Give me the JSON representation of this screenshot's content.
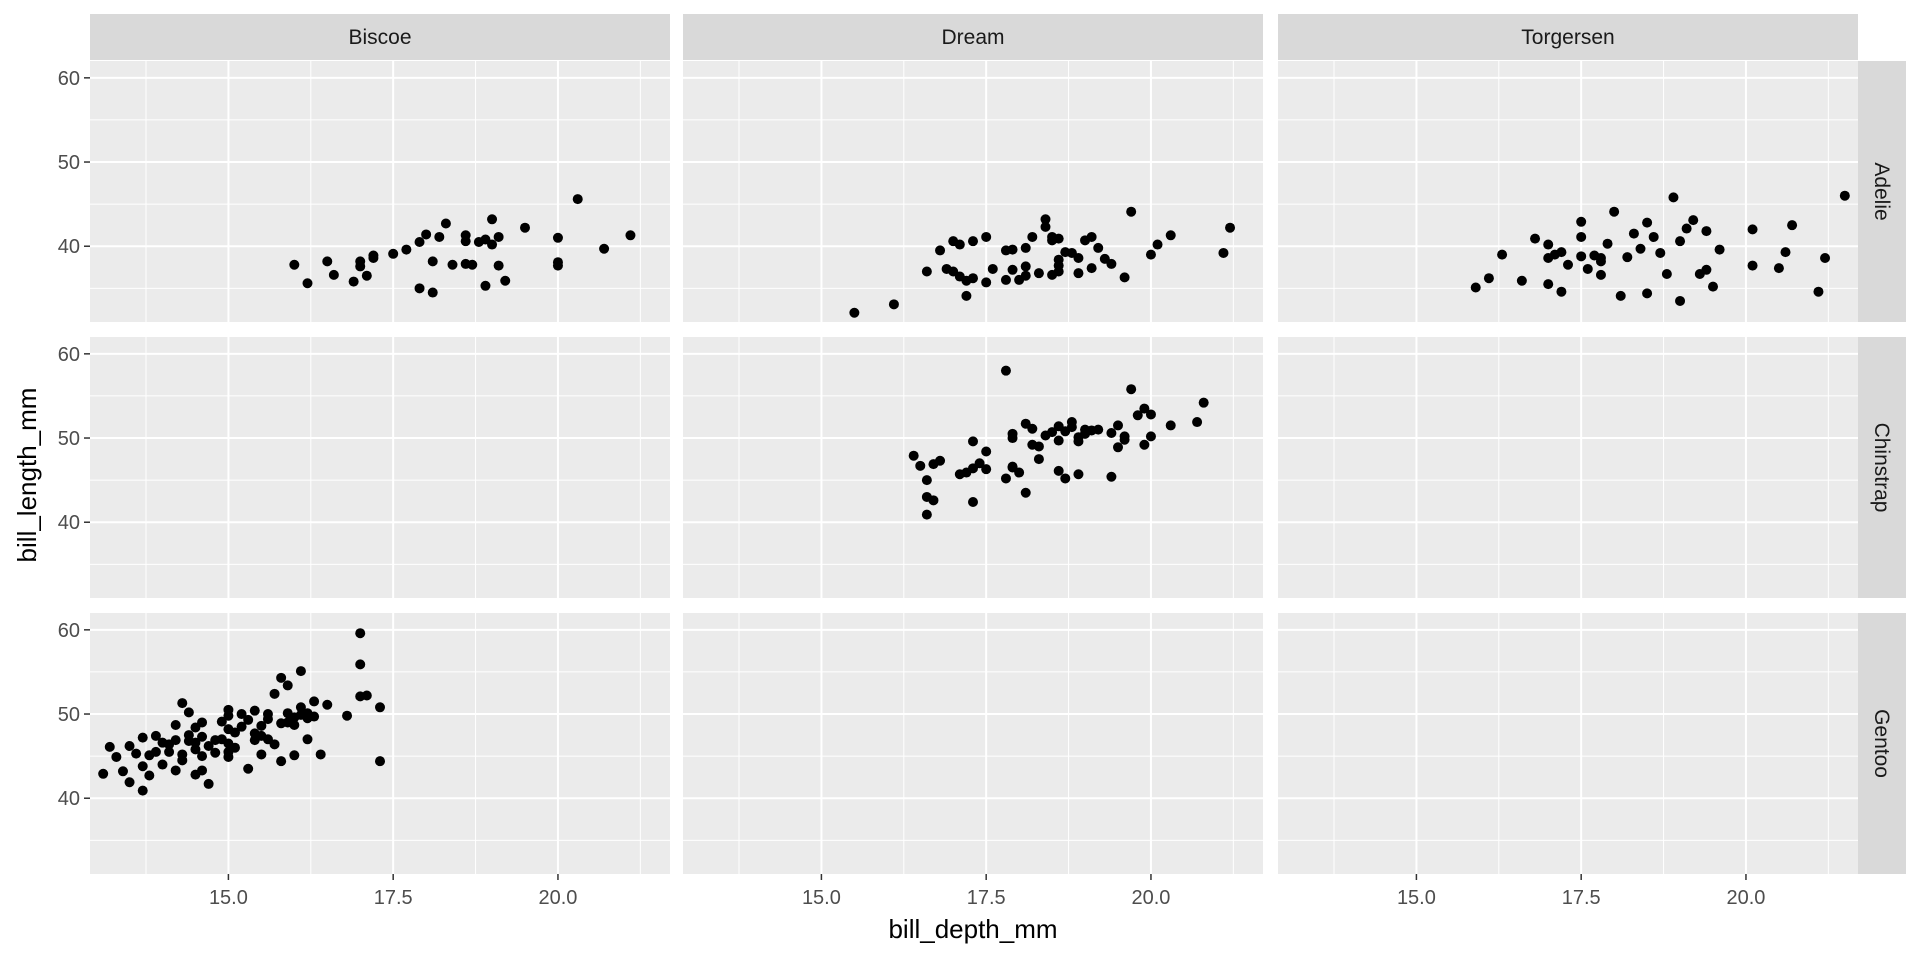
{
  "chart_data": {
    "type": "scatter",
    "xlabel": "bill_depth_mm",
    "ylabel": "bill_length_mm",
    "col_facets": [
      "Biscoe",
      "Dream",
      "Torgersen"
    ],
    "row_facets": [
      "Adelie",
      "Chinstrap",
      "Gentoo"
    ],
    "xlim": [
      12.9,
      21.7
    ],
    "ylim": [
      31,
      62
    ],
    "x_ticks": [
      15.0,
      17.5,
      20.0
    ],
    "x_tick_labels": [
      "15.0",
      "17.5",
      "20.0"
    ],
    "y_ticks": [
      40,
      50,
      60
    ],
    "y_tick_labels": [
      "40",
      "50",
      "60"
    ],
    "grid": true,
    "point_color": "#000000",
    "panel_background": "#ebebeb",
    "strip_background": "#d9d9d9",
    "panels": [
      {
        "row": "Adelie",
        "col": "Biscoe",
        "points": [
          [
            16.0,
            37.8
          ],
          [
            16.2,
            35.6
          ],
          [
            16.5,
            38.2
          ],
          [
            16.6,
            36.6
          ],
          [
            16.9,
            35.8
          ],
          [
            17.0,
            37.6
          ],
          [
            17.0,
            38.2
          ],
          [
            17.1,
            36.5
          ],
          [
            17.2,
            38.6
          ],
          [
            17.2,
            38.9
          ],
          [
            17.5,
            39.1
          ],
          [
            17.7,
            39.6
          ],
          [
            17.9,
            40.5
          ],
          [
            18.0,
            41.4
          ],
          [
            17.9,
            35.0
          ],
          [
            18.1,
            34.5
          ],
          [
            18.1,
            38.2
          ],
          [
            18.2,
            41.1
          ],
          [
            18.3,
            42.7
          ],
          [
            18.4,
            37.8
          ],
          [
            18.6,
            40.6
          ],
          [
            18.6,
            41.3
          ],
          [
            18.6,
            37.9
          ],
          [
            18.7,
            37.8
          ],
          [
            18.8,
            40.5
          ],
          [
            18.9,
            40.8
          ],
          [
            18.9,
            35.3
          ],
          [
            19.0,
            40.2
          ],
          [
            19.0,
            43.2
          ],
          [
            19.1,
            41.1
          ],
          [
            19.1,
            37.7
          ],
          [
            19.2,
            35.9
          ],
          [
            19.5,
            42.2
          ],
          [
            20.0,
            41.0
          ],
          [
            20.0,
            38.1
          ],
          [
            20.0,
            37.7
          ],
          [
            20.3,
            45.6
          ],
          [
            20.7,
            39.7
          ],
          [
            21.1,
            41.3
          ]
        ]
      },
      {
        "row": "Adelie",
        "col": "Dream",
        "points": [
          [
            15.5,
            32.1
          ],
          [
            16.1,
            33.1
          ],
          [
            16.6,
            37.0
          ],
          [
            16.8,
            39.5
          ],
          [
            16.9,
            37.3
          ],
          [
            17.0,
            37.0
          ],
          [
            17.0,
            40.6
          ],
          [
            17.1,
            36.4
          ],
          [
            17.1,
            40.2
          ],
          [
            17.2,
            35.9
          ],
          [
            17.2,
            34.1
          ],
          [
            17.3,
            40.6
          ],
          [
            17.3,
            36.2
          ],
          [
            17.5,
            41.1
          ],
          [
            17.5,
            35.7
          ],
          [
            17.6,
            37.3
          ],
          [
            17.8,
            39.5
          ],
          [
            17.8,
            36.0
          ],
          [
            17.9,
            37.2
          ],
          [
            17.9,
            39.6
          ],
          [
            18.0,
            36.0
          ],
          [
            18.1,
            36.5
          ],
          [
            18.1,
            37.6
          ],
          [
            18.1,
            39.8
          ],
          [
            18.2,
            41.1
          ],
          [
            18.3,
            36.8
          ],
          [
            18.4,
            42.3
          ],
          [
            18.5,
            40.7
          ],
          [
            18.5,
            41.1
          ],
          [
            18.5,
            36.6
          ],
          [
            18.6,
            37.0
          ],
          [
            18.6,
            38.4
          ],
          [
            18.6,
            40.9
          ],
          [
            18.7,
            39.3
          ],
          [
            18.8,
            39.2
          ],
          [
            18.9,
            36.8
          ],
          [
            18.9,
            38.6
          ],
          [
            19.0,
            40.7
          ],
          [
            19.1,
            41.1
          ],
          [
            19.1,
            37.4
          ],
          [
            19.2,
            39.8
          ],
          [
            19.3,
            38.5
          ],
          [
            19.4,
            37.9
          ],
          [
            19.6,
            36.3
          ],
          [
            19.7,
            44.1
          ],
          [
            20.0,
            39.0
          ],
          [
            20.1,
            40.2
          ],
          [
            20.3,
            41.3
          ],
          [
            21.1,
            39.2
          ],
          [
            21.2,
            42.2
          ],
          [
            18.4,
            43.2
          ],
          [
            18.6,
            37.7
          ]
        ]
      },
      {
        "row": "Adelie",
        "col": "Torgersen",
        "points": [
          [
            15.9,
            35.1
          ],
          [
            16.1,
            36.2
          ],
          [
            16.6,
            35.9
          ],
          [
            16.8,
            40.9
          ],
          [
            17.0,
            38.6
          ],
          [
            17.0,
            40.2
          ],
          [
            17.0,
            35.5
          ],
          [
            17.1,
            39.0
          ],
          [
            17.2,
            39.3
          ],
          [
            17.2,
            34.6
          ],
          [
            17.3,
            37.8
          ],
          [
            17.5,
            38.8
          ],
          [
            17.5,
            41.1
          ],
          [
            17.5,
            42.9
          ],
          [
            17.6,
            37.3
          ],
          [
            17.7,
            38.9
          ],
          [
            17.8,
            36.6
          ],
          [
            17.8,
            38.6
          ],
          [
            17.9,
            40.3
          ],
          [
            18.0,
            44.1
          ],
          [
            18.1,
            34.1
          ],
          [
            18.2,
            38.7
          ],
          [
            18.3,
            41.5
          ],
          [
            18.4,
            39.7
          ],
          [
            18.5,
            42.8
          ],
          [
            18.5,
            34.4
          ],
          [
            18.6,
            41.1
          ],
          [
            18.7,
            39.2
          ],
          [
            18.8,
            36.7
          ],
          [
            18.9,
            45.8
          ],
          [
            19.0,
            40.6
          ],
          [
            19.0,
            33.5
          ],
          [
            19.1,
            42.1
          ],
          [
            19.2,
            43.1
          ],
          [
            19.3,
            36.7
          ],
          [
            19.4,
            37.2
          ],
          [
            19.4,
            41.8
          ],
          [
            19.5,
            35.2
          ],
          [
            19.6,
            39.6
          ],
          [
            20.1,
            42.0
          ],
          [
            20.1,
            37.7
          ],
          [
            20.5,
            37.4
          ],
          [
            20.6,
            39.3
          ],
          [
            20.7,
            42.5
          ],
          [
            21.1,
            34.6
          ],
          [
            21.2,
            38.6
          ],
          [
            21.5,
            46.0
          ],
          [
            17.8,
            38.2
          ],
          [
            16.3,
            39.0
          ]
        ]
      },
      {
        "row": "Chinstrap",
        "col": "Biscoe",
        "points": []
      },
      {
        "row": "Chinstrap",
        "col": "Dream",
        "points": [
          [
            16.4,
            47.9
          ],
          [
            16.5,
            46.7
          ],
          [
            16.6,
            45.0
          ],
          [
            16.6,
            43.0
          ],
          [
            16.7,
            42.6
          ],
          [
            16.6,
            40.9
          ],
          [
            16.7,
            46.9
          ],
          [
            16.8,
            47.3
          ],
          [
            17.1,
            45.7
          ],
          [
            17.2,
            45.9
          ],
          [
            17.3,
            42.4
          ],
          [
            17.3,
            46.4
          ],
          [
            17.3,
            49.6
          ],
          [
            17.4,
            47.0
          ],
          [
            17.5,
            46.3
          ],
          [
            17.5,
            48.4
          ],
          [
            17.8,
            45.2
          ],
          [
            17.8,
            58.0
          ],
          [
            17.9,
            46.6
          ],
          [
            17.9,
            50.5
          ],
          [
            17.9,
            46.5
          ],
          [
            17.9,
            50.0
          ],
          [
            18.0,
            45.9
          ],
          [
            18.1,
            43.5
          ],
          [
            18.1,
            51.7
          ],
          [
            18.2,
            49.2
          ],
          [
            18.2,
            51.1
          ],
          [
            18.3,
            47.5
          ],
          [
            18.4,
            50.3
          ],
          [
            18.5,
            50.7
          ],
          [
            18.6,
            46.1
          ],
          [
            18.6,
            49.7
          ],
          [
            18.7,
            45.2
          ],
          [
            18.7,
            50.8
          ],
          [
            18.8,
            51.3
          ],
          [
            18.8,
            51.9
          ],
          [
            18.9,
            49.6
          ],
          [
            18.9,
            50.1
          ],
          [
            18.9,
            45.7
          ],
          [
            19.0,
            51.0
          ],
          [
            19.0,
            50.5
          ],
          [
            19.1,
            50.9
          ],
          [
            19.2,
            51.0
          ],
          [
            19.4,
            45.4
          ],
          [
            19.4,
            50.6
          ],
          [
            19.5,
            51.5
          ],
          [
            19.5,
            48.9
          ],
          [
            19.6,
            49.8
          ],
          [
            19.6,
            50.2
          ],
          [
            19.7,
            55.8
          ],
          [
            19.8,
            52.7
          ],
          [
            19.9,
            53.5
          ],
          [
            19.9,
            49.2
          ],
          [
            20.0,
            52.8
          ],
          [
            20.0,
            50.2
          ],
          [
            20.3,
            51.5
          ],
          [
            20.7,
            51.9
          ],
          [
            20.8,
            54.2
          ],
          [
            18.3,
            49.0
          ],
          [
            18.6,
            51.4
          ]
        ]
      },
      {
        "row": "Chinstrap",
        "col": "Torgersen",
        "points": []
      },
      {
        "row": "Gentoo",
        "col": "Biscoe",
        "points": [
          [
            13.1,
            42.9
          ],
          [
            13.2,
            46.1
          ],
          [
            13.3,
            44.9
          ],
          [
            13.4,
            43.2
          ],
          [
            13.5,
            46.2
          ],
          [
            13.5,
            41.9
          ],
          [
            13.6,
            45.3
          ],
          [
            13.7,
            43.8
          ],
          [
            13.7,
            40.9
          ],
          [
            13.7,
            47.2
          ],
          [
            13.8,
            45.1
          ],
          [
            13.8,
            42.7
          ],
          [
            13.9,
            45.5
          ],
          [
            13.9,
            47.4
          ],
          [
            14.0,
            44.0
          ],
          [
            14.1,
            45.5
          ],
          [
            14.1,
            46.4
          ],
          [
            14.2,
            48.7
          ],
          [
            14.2,
            43.3
          ],
          [
            14.2,
            46.9
          ],
          [
            14.3,
            51.3
          ],
          [
            14.3,
            45.2
          ],
          [
            14.3,
            44.5
          ],
          [
            14.4,
            46.8
          ],
          [
            14.4,
            50.2
          ],
          [
            14.4,
            47.5
          ],
          [
            14.5,
            42.8
          ],
          [
            14.5,
            45.8
          ],
          [
            14.5,
            48.4
          ],
          [
            14.6,
            47.3
          ],
          [
            14.6,
            43.3
          ],
          [
            14.6,
            49.0
          ],
          [
            14.7,
            46.2
          ],
          [
            14.7,
            41.7
          ],
          [
            14.8,
            45.4
          ],
          [
            14.8,
            46.9
          ],
          [
            14.9,
            47.0
          ],
          [
            14.9,
            49.1
          ],
          [
            15.0,
            44.9
          ],
          [
            15.0,
            46.5
          ],
          [
            15.0,
            48.2
          ],
          [
            15.0,
            49.8
          ],
          [
            15.0,
            50.5
          ],
          [
            15.1,
            46.0
          ],
          [
            15.1,
            47.8
          ],
          [
            15.2,
            50.0
          ],
          [
            15.2,
            48.5
          ],
          [
            15.3,
            43.5
          ],
          [
            15.3,
            49.3
          ],
          [
            15.4,
            50.4
          ],
          [
            15.4,
            46.9
          ],
          [
            15.5,
            45.2
          ],
          [
            15.5,
            47.4
          ],
          [
            15.6,
            47.0
          ],
          [
            15.6,
            49.4
          ],
          [
            15.7,
            52.4
          ],
          [
            15.7,
            46.4
          ],
          [
            15.8,
            44.4
          ],
          [
            15.8,
            48.9
          ],
          [
            15.8,
            54.3
          ],
          [
            15.9,
            53.4
          ],
          [
            15.9,
            50.1
          ],
          [
            16.0,
            49.6
          ],
          [
            16.0,
            48.7
          ],
          [
            16.1,
            55.1
          ],
          [
            16.1,
            50.8
          ],
          [
            16.2,
            49.5
          ],
          [
            16.2,
            47.0
          ],
          [
            16.3,
            49.7
          ],
          [
            16.3,
            51.5
          ],
          [
            16.4,
            45.2
          ],
          [
            16.5,
            51.1
          ],
          [
            16.8,
            49.8
          ],
          [
            17.0,
            59.6
          ],
          [
            17.0,
            55.9
          ],
          [
            17.0,
            52.1
          ],
          [
            17.1,
            52.2
          ],
          [
            17.3,
            50.8
          ],
          [
            17.3,
            44.4
          ],
          [
            16.2,
            50.1
          ],
          [
            15.5,
            48.6
          ],
          [
            14.0,
            46.6
          ],
          [
            14.6,
            45.0
          ],
          [
            15.9,
            49.0
          ],
          [
            16.0,
            45.1
          ],
          [
            15.4,
            47.7
          ],
          [
            14.5,
            46.6
          ],
          [
            15.0,
            45.5
          ],
          [
            15.6,
            50.0
          ],
          [
            16.1,
            49.9
          ]
        ]
      },
      {
        "row": "Gentoo",
        "col": "Dream",
        "points": []
      },
      {
        "row": "Gentoo",
        "col": "Torgersen",
        "points": []
      }
    ]
  }
}
